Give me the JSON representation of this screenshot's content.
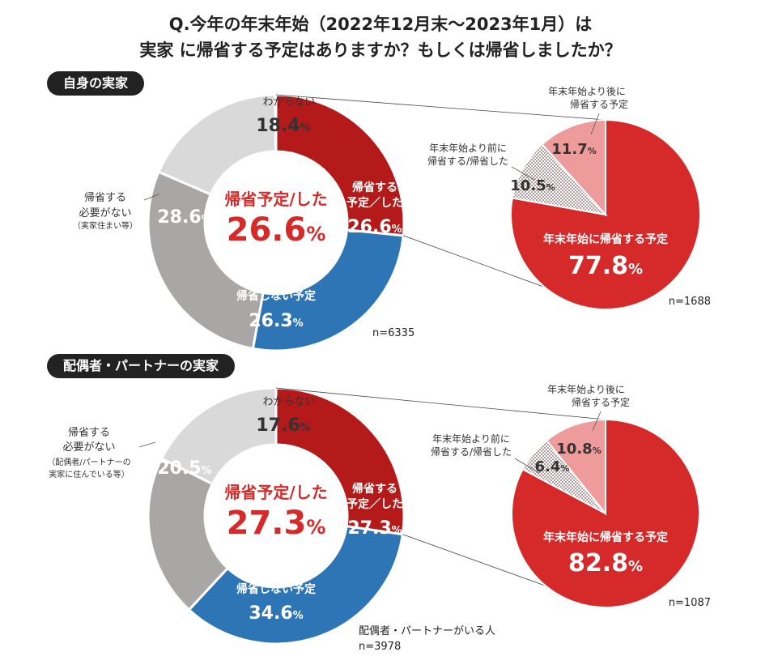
{
  "title": {
    "line1": "Q.今年の年末年始（2022年12月末〜2023年1月）は",
    "line2": "実家 に帰省する予定はありますか？もしくは帰省しましたか？"
  },
  "colors": {
    "dont_know": "#d9d9d9",
    "no_need": "#a9a6a6",
    "not_going": "#2e75b6",
    "going": "#b51a1a",
    "main_pie": "#d62a2a",
    "after": "#ee9b9b",
    "before_dots": "#7a5a5a",
    "center_text": "#d62a2a"
  },
  "chart_data": [
    {
      "type": "pie",
      "title": "自身の実家",
      "center_label": "帰省予定/した",
      "center_value": "26.6%",
      "n_label": "n=6335",
      "slices": [
        {
          "key": "going",
          "label": "帰省する予定／した",
          "value": 26.6,
          "display": "26.6%"
        },
        {
          "key": "not_going",
          "label": "帰省しない予定",
          "value": 26.3,
          "display": "26.3%"
        },
        {
          "key": "no_need",
          "label": "帰省する必要がない（実家住まい等）",
          "value": 28.6,
          "display": "28.6%"
        },
        {
          "key": "dont_know",
          "label": "わからない",
          "value": 18.4,
          "display": "18.4%"
        }
      ],
      "labels": {
        "going_l1": "帰省する",
        "going_l2": "予定／した",
        "not_going": "帰省しない予定",
        "no_need_l1": "帰省する",
        "no_need_l2": "必要がない",
        "no_need_l3": "（実家住まい等）",
        "dont_know": "わからない"
      },
      "breakdown": {
        "n_label": "n=1688",
        "slices": [
          {
            "key": "main",
            "label": "年末年始に帰省する予定",
            "value": 77.8,
            "display": "77.8%"
          },
          {
            "key": "before",
            "label": "年末年始より前に帰省する/帰省した",
            "value": 10.5,
            "display": "10.5%"
          },
          {
            "key": "after",
            "label": "年末年始より後に帰省する予定",
            "value": 11.7,
            "display": "11.7%"
          }
        ],
        "labels": {
          "main": "年末年始に帰省する予定",
          "before_l1": "年末年始より前に",
          "before_l2": "帰省する/帰省した",
          "after_l1": "年末年始より後に",
          "after_l2": "帰省する予定"
        }
      }
    },
    {
      "type": "pie",
      "title": "配偶者・パートナーの実家",
      "center_label": "帰省予定/した",
      "center_value": "27.3%",
      "n_label": "n=3978",
      "n_note": "配偶者・パートナーがいる人",
      "slices": [
        {
          "key": "going",
          "label": "帰省する予定／した",
          "value": 27.3,
          "display": "27.3%"
        },
        {
          "key": "not_going",
          "label": "帰省しない予定",
          "value": 34.6,
          "display": "34.6%"
        },
        {
          "key": "no_need",
          "label": "帰省する必要がない（配偶者/パートナーの実家に住んでいる等）",
          "value": 20.5,
          "display": "20.5%"
        },
        {
          "key": "dont_know",
          "label": "わからない",
          "value": 17.6,
          "display": "17.6%"
        }
      ],
      "labels": {
        "going_l1": "帰省する",
        "going_l2": "予定／した",
        "not_going": "帰省しない予定",
        "no_need_l1": "帰省する",
        "no_need_l2": "必要がない",
        "no_need_l3": "（配偶者/パートナーの",
        "no_need_l4": "実家に住んでいる等）",
        "dont_know": "わからない"
      },
      "breakdown": {
        "n_label": "n=1087",
        "slices": [
          {
            "key": "main",
            "label": "年末年始に帰省する予定",
            "value": 82.8,
            "display": "82.8%"
          },
          {
            "key": "before",
            "label": "年末年始より前に帰省する/帰省した",
            "value": 6.4,
            "display": "6.4%"
          },
          {
            "key": "after",
            "label": "年末年始より後に帰省する予定",
            "value": 10.8,
            "display": "10.8%"
          }
        ],
        "labels": {
          "main": "年末年始に帰省する予定",
          "before_l1": "年末年始より前に",
          "before_l2": "帰省する/帰省した",
          "after_l1": "年末年始より後に",
          "after_l2": "帰省する予定"
        }
      }
    }
  ]
}
